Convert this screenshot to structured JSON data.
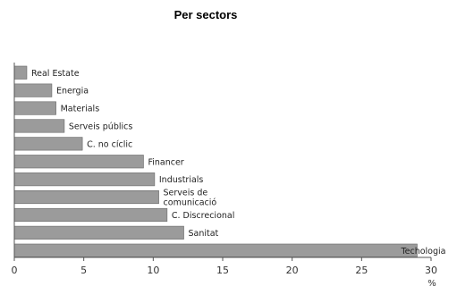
{
  "chart_data": {
    "type": "bar",
    "orientation": "horizontal",
    "title": "Per sectors",
    "xlabel": "%",
    "ylabel": "",
    "xlim": [
      0,
      30
    ],
    "xticks": [
      0,
      5,
      10,
      15,
      20,
      25,
      30
    ],
    "grid": false,
    "bar_color": "#9b9b9b",
    "bar_edge_color": "#666666",
    "categories": [
      [
        "Real Estate"
      ],
      [
        "Energia"
      ],
      [
        "Materials"
      ],
      [
        "Serveis públics"
      ],
      [
        "C. no cíclic"
      ],
      [
        "Financer"
      ],
      [
        "Industrials"
      ],
      [
        "Serveis de",
        "comunicació"
      ],
      [
        "C. Discrecional"
      ],
      [
        "Sanitat"
      ],
      [
        "Techologia"
      ]
    ],
    "values": [
      0.9,
      2.7,
      3.0,
      3.6,
      4.9,
      9.3,
      10.1,
      10.4,
      11.0,
      12.2,
      29.0
    ]
  }
}
